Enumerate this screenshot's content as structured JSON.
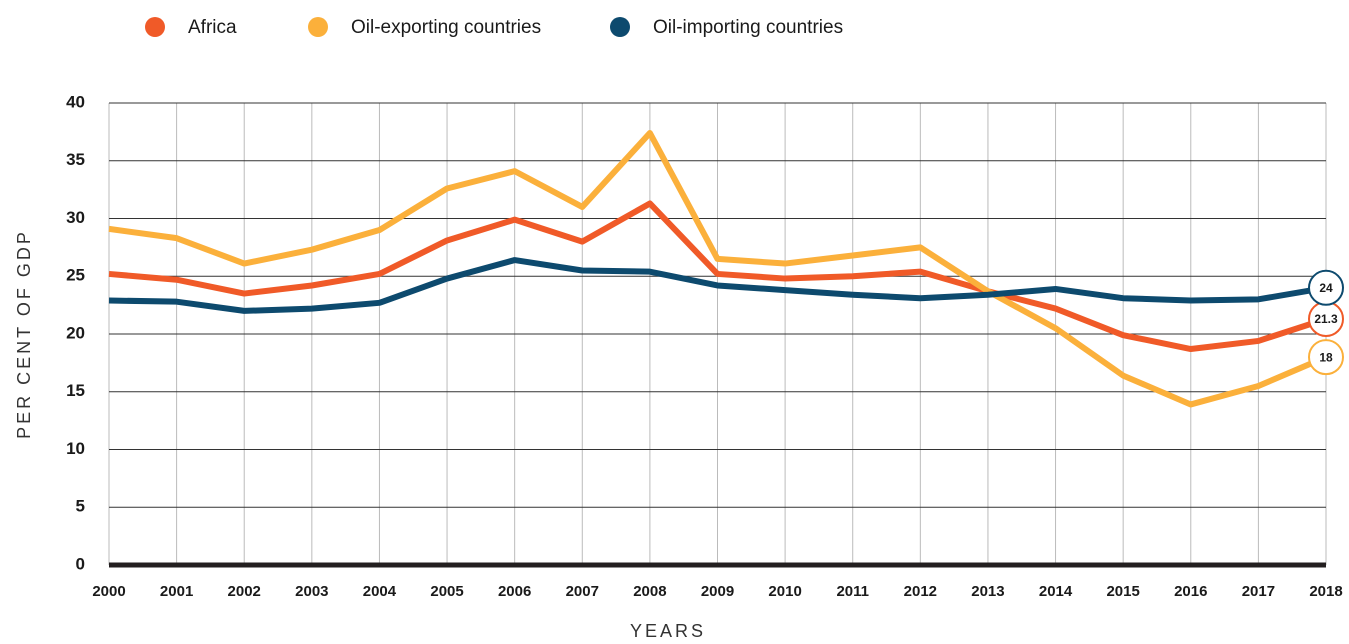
{
  "chart_data": {
    "type": "line",
    "y_label": "PER CENT OF GDP",
    "x_label": "YEARS",
    "categories": [
      "2000",
      "2001",
      "2002",
      "2003",
      "2004",
      "2005",
      "2006",
      "2007",
      "2008",
      "2009",
      "2010",
      "2011",
      "2012",
      "2013",
      "2014",
      "2015",
      "2016",
      "2017",
      "2018"
    ],
    "series": [
      {
        "name": "Africa",
        "color": "#f05a28",
        "values": [
          25.2,
          24.7,
          23.5,
          24.2,
          25.2,
          28.1,
          29.9,
          28.0,
          31.3,
          25.2,
          24.8,
          25.0,
          25.4,
          23.7,
          22.2,
          19.9,
          18.7,
          19.4,
          21.3
        ]
      },
      {
        "name": "Oil-exporting countries",
        "color": "#fbb03b",
        "values": [
          29.1,
          28.3,
          26.1,
          27.3,
          29.0,
          32.6,
          34.1,
          31.0,
          37.4,
          26.5,
          26.1,
          26.8,
          27.5,
          23.7,
          20.5,
          16.4,
          13.9,
          15.5,
          18
        ]
      },
      {
        "name": "Oil-importing countries",
        "color": "#0d4a6e",
        "values": [
          22.9,
          22.8,
          22.0,
          22.2,
          22.7,
          24.8,
          26.4,
          25.5,
          25.4,
          24.2,
          23.8,
          23.4,
          23.1,
          23.4,
          23.9,
          23.1,
          22.9,
          23.0,
          24
        ]
      }
    ],
    "ylim": [
      0,
      40
    ],
    "yticks": [
      0,
      5,
      10,
      15,
      20,
      25,
      30,
      35,
      40
    ],
    "grid": true
  }
}
